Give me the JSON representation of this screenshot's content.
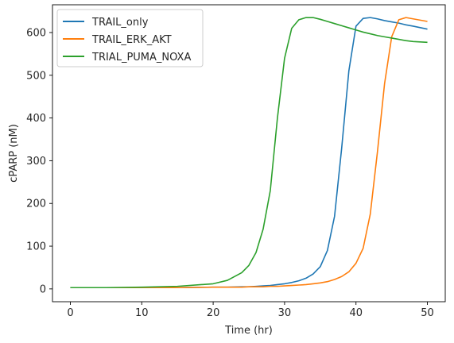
{
  "chart_data": {
    "type": "line",
    "xlabel": "Time (hr)",
    "ylabel": "cPARP (nM)",
    "xlim": [
      -2.5,
      52.5
    ],
    "ylim": [
      -30,
      665
    ],
    "xticks": [
      0,
      10,
      20,
      30,
      40,
      50
    ],
    "yticks": [
      0,
      100,
      200,
      300,
      400,
      500,
      600
    ],
    "grid": false,
    "legend_position": "top-left",
    "x": [
      0,
      5,
      10,
      15,
      20,
      22,
      24,
      25,
      26,
      27,
      28,
      29,
      30,
      31,
      32,
      33,
      34,
      35,
      36,
      37,
      38,
      39,
      40,
      41,
      42,
      43,
      44,
      45,
      46,
      47,
      48,
      50
    ],
    "series": [
      {
        "name": "TRAIL_only",
        "color": "#1f77b4",
        "values": [
          3,
          3,
          3,
          3,
          4,
          4,
          5,
          5,
          6,
          7,
          8,
          10,
          12,
          15,
          19,
          25,
          35,
          52,
          90,
          170,
          330,
          510,
          615,
          633,
          635,
          632,
          628,
          625,
          622,
          618,
          615,
          608
        ]
      },
      {
        "name": "TRAIL_ERK_AKT",
        "color": "#ff7f0e",
        "values": [
          3,
          3,
          3,
          3,
          4,
          4,
          4,
          5,
          5,
          5,
          6,
          6,
          7,
          8,
          9,
          10,
          12,
          14,
          17,
          22,
          29,
          40,
          60,
          95,
          175,
          320,
          480,
          590,
          630,
          635,
          632,
          626
        ]
      },
      {
        "name": "TRIAL_PUMA_NOXA",
        "color": "#2ca02c",
        "values": [
          3,
          3,
          4,
          6,
          12,
          20,
          38,
          55,
          85,
          140,
          230,
          400,
          540,
          610,
          630,
          635,
          635,
          631,
          626,
          621,
          616,
          611,
          606,
          601,
          597,
          593,
          590,
          587,
          584,
          581,
          579,
          577
        ]
      }
    ]
  }
}
